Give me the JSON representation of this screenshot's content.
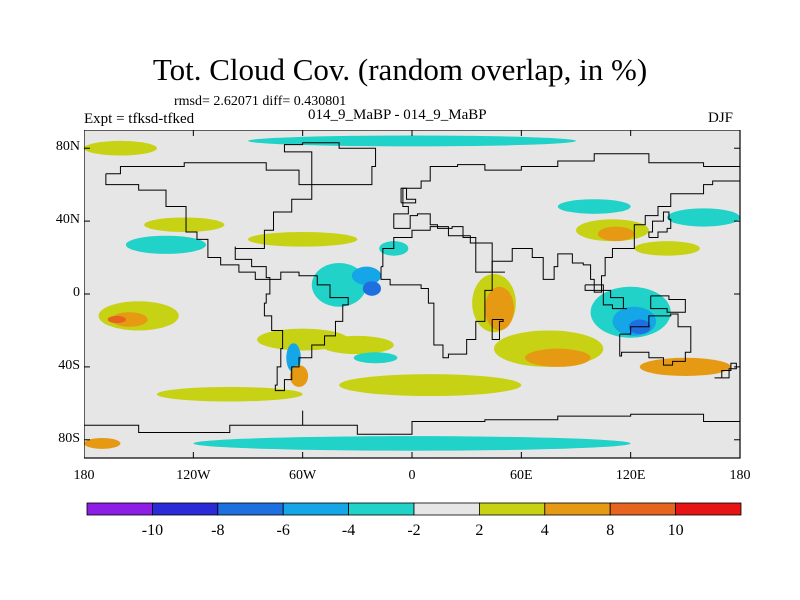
{
  "figure": {
    "title": "Tot. Cloud Cov. (random overlap, in %)",
    "stats": "rmsd= 2.62071 diff= 0.430801",
    "expt_label": "Expt = tfksd-tfked",
    "case_label": "014_9_MaBP - 014_9_MaBP",
    "season": "DJF"
  },
  "axes": {
    "y_ticks": [
      {
        "label": "80N",
        "lat": 80
      },
      {
        "label": "40N",
        "lat": 40
      },
      {
        "label": "0",
        "lat": 0
      },
      {
        "label": "40S",
        "lat": -40
      },
      {
        "label": "80S",
        "lat": -80
      }
    ],
    "x_ticks": [
      {
        "label": "180",
        "lon": -180
      },
      {
        "label": "120W",
        "lon": -120
      },
      {
        "label": "60W",
        "lon": -60
      },
      {
        "label": "0",
        "lon": 0
      },
      {
        "label": "60E",
        "lon": 60
      },
      {
        "label": "120E",
        "lon": 120
      },
      {
        "label": "180",
        "lon": 180
      }
    ]
  },
  "colorbar": {
    "labels": [
      "-10",
      "-8",
      "-6",
      "-4",
      "-2",
      "2",
      "4",
      "8",
      "10"
    ],
    "colors": [
      "#8c1ee6",
      "#2a2ad8",
      "#1e6fe0",
      "#14a6e6",
      "#20d2c8",
      "#e6e6e6",
      "#c8d214",
      "#e69a14",
      "#e6641e",
      "#e61414"
    ]
  },
  "chart_data": {
    "type": "heatmap",
    "variable": "Tot. Cloud Cov. (random overlap, in %)",
    "units": "%",
    "lon_range": [
      -180,
      180
    ],
    "lat_range": [
      -90,
      90
    ],
    "levels": [
      -10,
      -8,
      -6,
      -4,
      -2,
      2,
      4,
      8,
      10
    ],
    "colors": [
      "#8c1ee6",
      "#2a2ad8",
      "#1e6fe0",
      "#14a6e6",
      "#20d2c8",
      "#e6e6e6",
      "#c8d214",
      "#e69a14",
      "#e6641e",
      "#e61414"
    ],
    "anomaly_blobs": [
      {
        "lon": -150,
        "lat": -12,
        "rx": 22,
        "ry": 8,
        "value": 3
      },
      {
        "lon": -155,
        "lat": -14,
        "rx": 10,
        "ry": 4,
        "value": 6
      },
      {
        "lon": -162,
        "lat": -14,
        "rx": 5,
        "ry": 2,
        "value": 9
      },
      {
        "lon": -135,
        "lat": 27,
        "rx": 22,
        "ry": 5,
        "value": -3
      },
      {
        "lon": -125,
        "lat": 38,
        "rx": 22,
        "ry": 4,
        "value": 3
      },
      {
        "lon": -60,
        "lat": 30,
        "rx": 30,
        "ry": 4,
        "value": 3
      },
      {
        "lon": -40,
        "lat": 5,
        "rx": 15,
        "ry": 12,
        "value": -3
      },
      {
        "lon": -25,
        "lat": 10,
        "rx": 8,
        "ry": 5,
        "value": -6
      },
      {
        "lon": -22,
        "lat": 3,
        "rx": 5,
        "ry": 4,
        "value": -8
      },
      {
        "lon": -10,
        "lat": 25,
        "rx": 8,
        "ry": 4,
        "value": -3
      },
      {
        "lon": -60,
        "lat": -25,
        "rx": 25,
        "ry": 6,
        "value": 3
      },
      {
        "lon": -65,
        "lat": -35,
        "rx": 4,
        "ry": 8,
        "value": -5
      },
      {
        "lon": -62,
        "lat": -45,
        "rx": 5,
        "ry": 6,
        "value": 6
      },
      {
        "lon": -30,
        "lat": -28,
        "rx": 20,
        "ry": 5,
        "value": 3
      },
      {
        "lon": -20,
        "lat": -35,
        "rx": 12,
        "ry": 3,
        "value": -3
      },
      {
        "lon": 10,
        "lat": -50,
        "rx": 50,
        "ry": 6,
        "value": 3
      },
      {
        "lon": 45,
        "lat": -5,
        "rx": 12,
        "ry": 16,
        "value": 3
      },
      {
        "lon": 48,
        "lat": -8,
        "rx": 8,
        "ry": 12,
        "value": 5
      },
      {
        "lon": 75,
        "lat": -30,
        "rx": 30,
        "ry": 10,
        "value": 3
      },
      {
        "lon": 80,
        "lat": -35,
        "rx": 18,
        "ry": 5,
        "value": 5
      },
      {
        "lon": 120,
        "lat": -10,
        "rx": 22,
        "ry": 14,
        "value": -3
      },
      {
        "lon": 122,
        "lat": -15,
        "rx": 12,
        "ry": 8,
        "value": -5
      },
      {
        "lon": 125,
        "lat": -18,
        "rx": 6,
        "ry": 4,
        "value": -8
      },
      {
        "lon": 110,
        "lat": 35,
        "rx": 20,
        "ry": 6,
        "value": 3
      },
      {
        "lon": 112,
        "lat": 33,
        "rx": 10,
        "ry": 4,
        "value": 5
      },
      {
        "lon": 100,
        "lat": 48,
        "rx": 20,
        "ry": 4,
        "value": -3
      },
      {
        "lon": 160,
        "lat": 42,
        "rx": 20,
        "ry": 5,
        "value": -3
      },
      {
        "lon": 140,
        "lat": 25,
        "rx": 18,
        "ry": 4,
        "value": 3
      },
      {
        "lon": 150,
        "lat": -40,
        "rx": 25,
        "ry": 5,
        "value": 5
      },
      {
        "lon": -100,
        "lat": -55,
        "rx": 40,
        "ry": 4,
        "value": 3
      },
      {
        "lon": 0,
        "lat": 84,
        "rx": 90,
        "ry": 3,
        "value": -3
      },
      {
        "lon": -160,
        "lat": 80,
        "rx": 20,
        "ry": 4,
        "value": 3
      },
      {
        "lon": 0,
        "lat": -82,
        "rx": 120,
        "ry": 4,
        "value": -3
      },
      {
        "lon": -170,
        "lat": -82,
        "rx": 10,
        "ry": 3,
        "value": 5
      }
    ]
  }
}
